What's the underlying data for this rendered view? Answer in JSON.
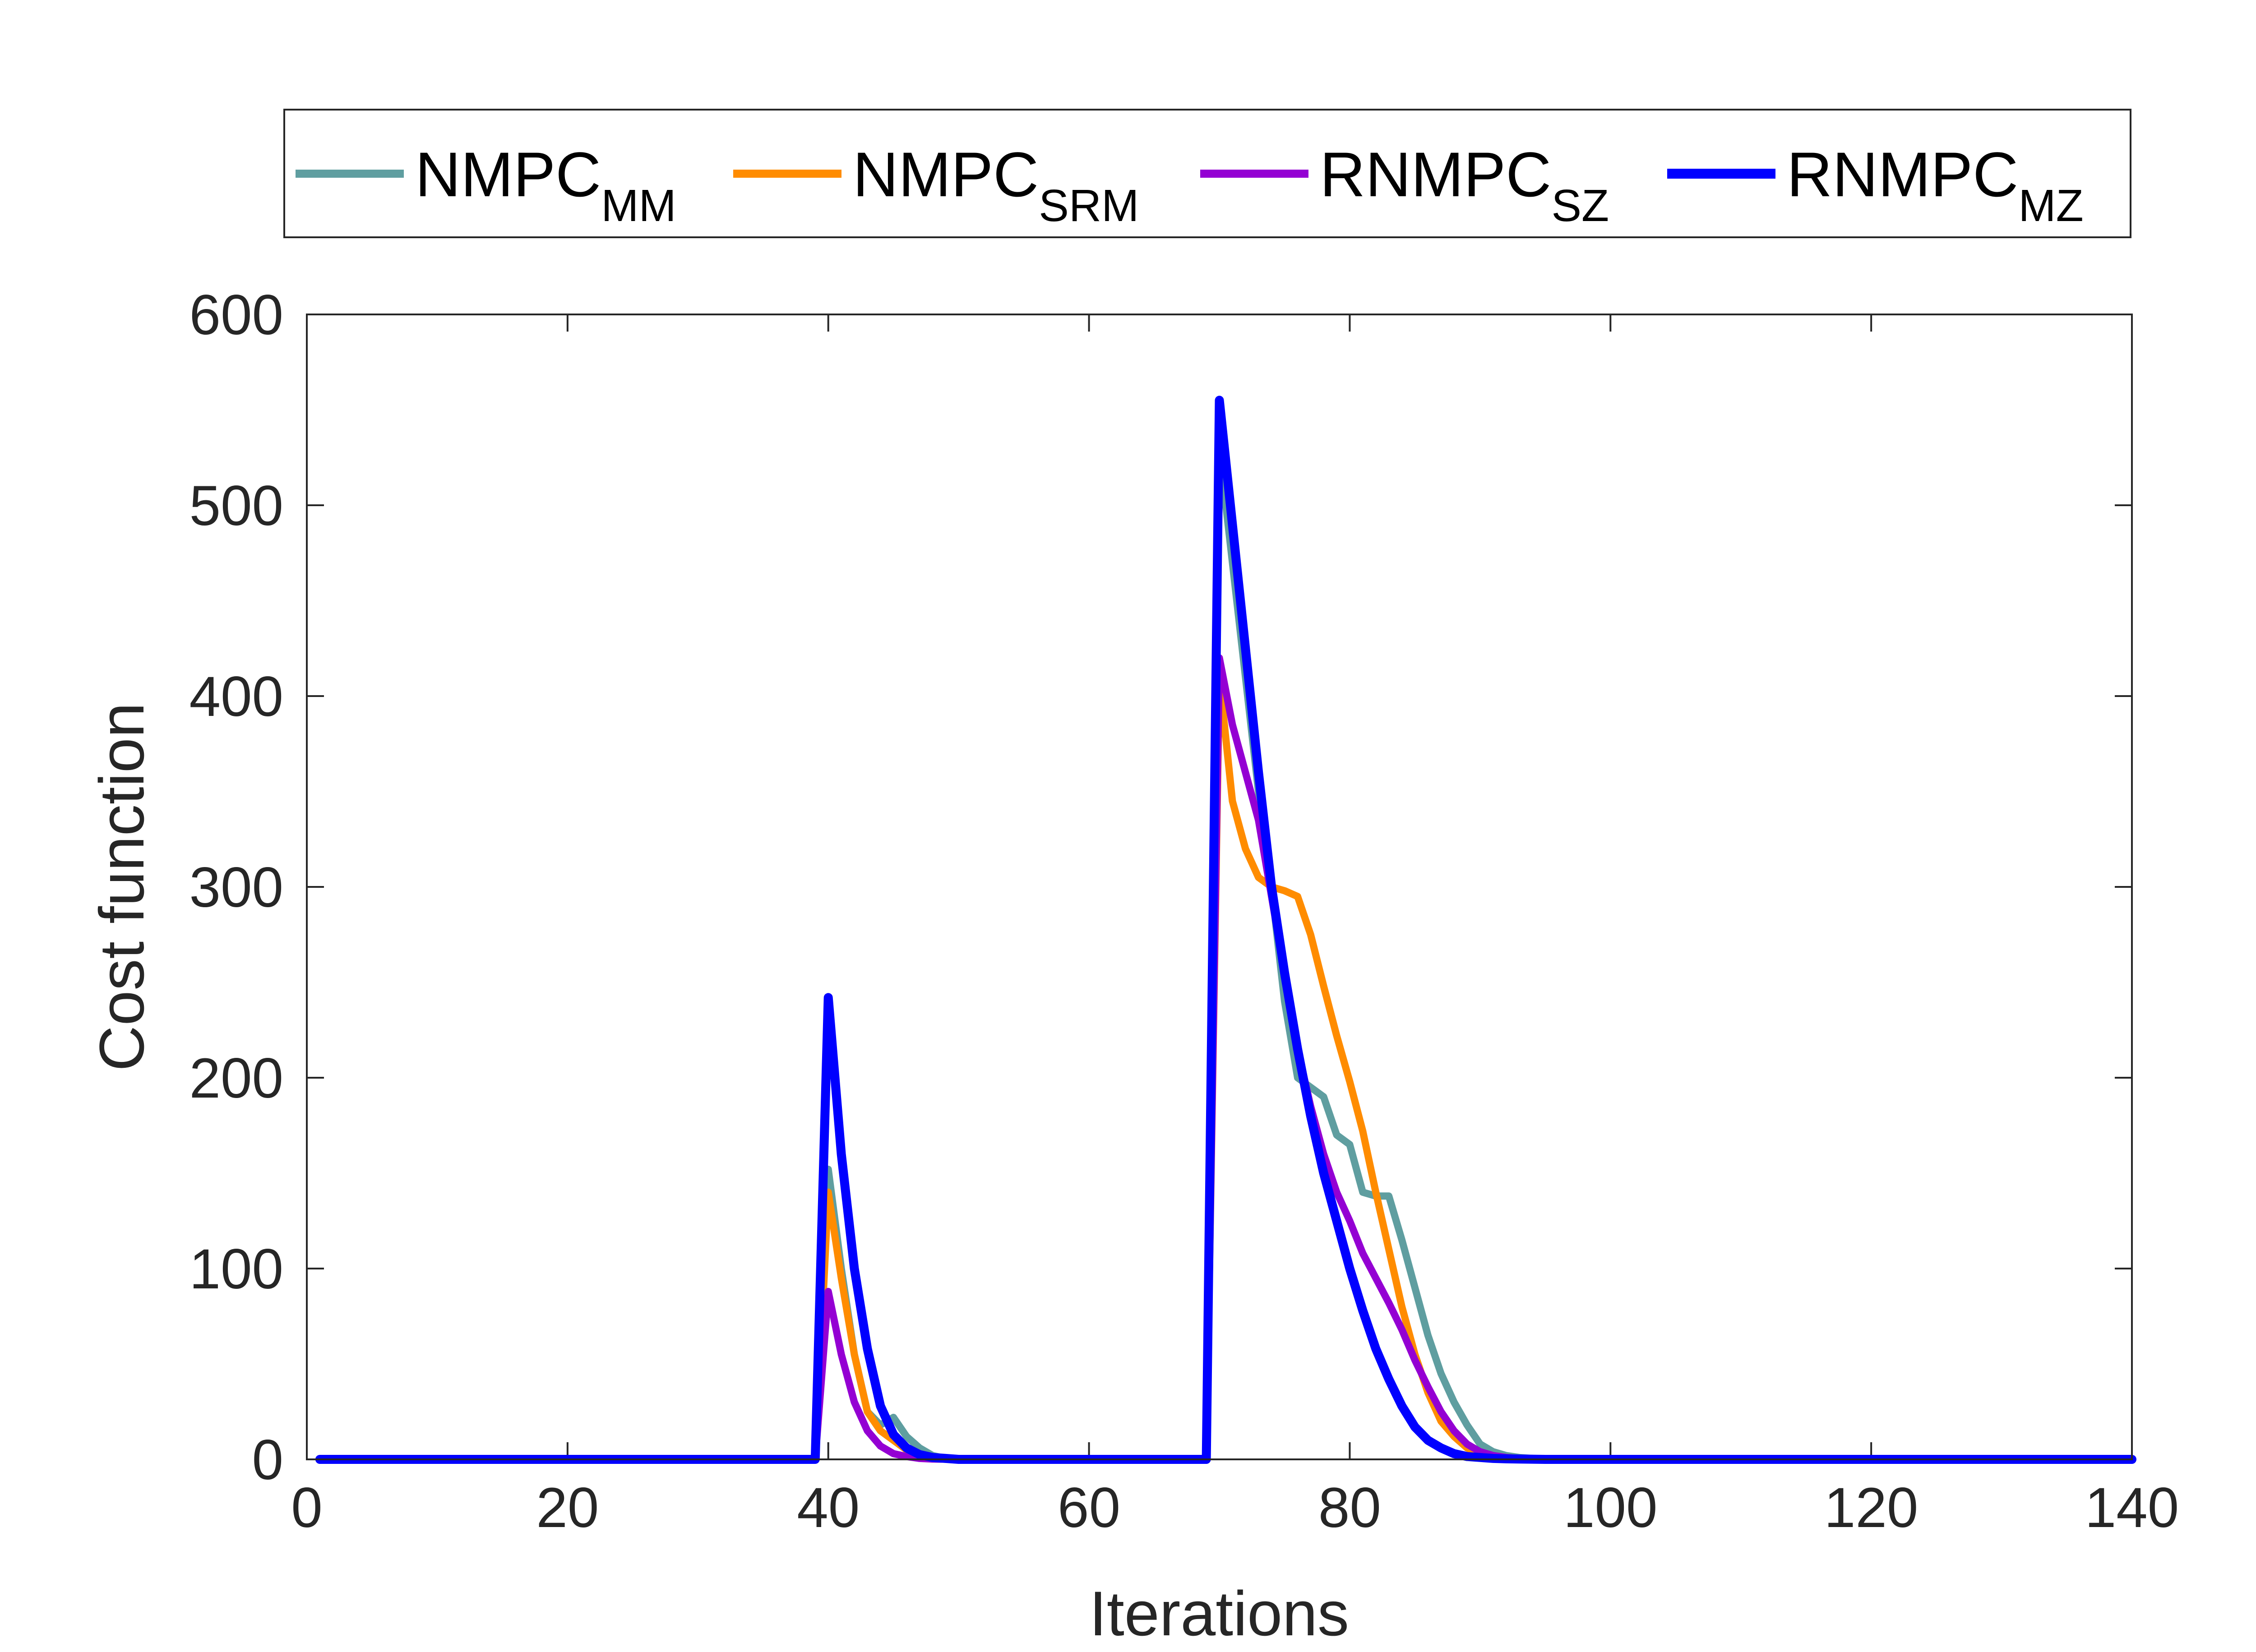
{
  "chart_data": {
    "type": "line",
    "title": "",
    "xlabel": "Iterations",
    "ylabel": "Cost function",
    "xlim": [
      0,
      140
    ],
    "ylim": [
      0,
      600
    ],
    "xticks": [
      0,
      20,
      40,
      60,
      80,
      100,
      120,
      140
    ],
    "yticks": [
      0,
      100,
      200,
      300,
      400,
      500,
      600
    ],
    "legend_position": "top-outside",
    "series": [
      {
        "name": "NMPC",
        "subscript": "MM",
        "color": "#5f9ea0",
        "x": [
          1,
          38,
          39,
          40,
          41,
          42,
          43,
          44,
          45,
          46,
          47,
          48,
          49,
          50,
          69,
          70,
          71,
          72,
          73,
          74,
          75,
          76,
          77,
          78,
          79,
          80,
          81,
          82,
          83,
          84,
          85,
          86,
          87,
          88,
          89,
          90,
          91,
          92,
          93,
          94,
          95,
          140
        ],
        "y": [
          0,
          0,
          0,
          152,
          100,
          55,
          25,
          18,
          22,
          12,
          6,
          2,
          0.5,
          0,
          0,
          530,
          470,
          410,
          350,
          300,
          240,
          200,
          195,
          190,
          170,
          165,
          140,
          138,
          138,
          115,
          90,
          65,
          45,
          30,
          18,
          8,
          4,
          2,
          1,
          0.5,
          0,
          0
        ]
      },
      {
        "name": "NMPC",
        "subscript": "SRM",
        "color": "#ff8c00",
        "x": [
          1,
          38,
          39,
          40,
          41,
          42,
          43,
          44,
          45,
          46,
          47,
          48,
          50,
          69,
          70,
          71,
          72,
          73,
          74,
          75,
          76,
          77,
          78,
          79,
          80,
          81,
          82,
          83,
          84,
          85,
          86,
          87,
          88,
          89,
          90,
          91,
          92,
          93,
          95,
          140
        ],
        "y": [
          0,
          0,
          0,
          140,
          95,
          55,
          25,
          15,
          10,
          5,
          2,
          1,
          0,
          0,
          410,
          345,
          320,
          305,
          300,
          298,
          295,
          275,
          248,
          222,
          198,
          172,
          140,
          110,
          80,
          55,
          35,
          20,
          12,
          6,
          3,
          1.5,
          1,
          0.5,
          0,
          0
        ]
      },
      {
        "name": "RNMPC",
        "subscript": "SZ",
        "color": "#9400d3",
        "x": [
          1,
          38,
          39,
          40,
          41,
          42,
          43,
          44,
          45,
          46,
          47,
          48,
          50,
          69,
          70,
          71,
          72,
          73,
          74,
          75,
          76,
          77,
          78,
          79,
          80,
          81,
          82,
          83,
          84,
          85,
          86,
          87,
          88,
          89,
          90,
          91,
          92,
          93,
          95,
          140
        ],
        "y": [
          0,
          0,
          0,
          88,
          55,
          30,
          15,
          7,
          3,
          1.5,
          0.5,
          0.2,
          0,
          0,
          420,
          385,
          360,
          335,
          295,
          255,
          215,
          185,
          160,
          140,
          125,
          108,
          95,
          82,
          68,
          52,
          38,
          25,
          15,
          8,
          4,
          2,
          1,
          0.5,
          0,
          0
        ]
      },
      {
        "name": "RNMPC",
        "subscript": "MZ",
        "color": "#0000ff",
        "x": [
          1,
          38,
          39,
          40,
          41,
          42,
          43,
          44,
          45,
          46,
          47,
          48,
          49,
          50,
          69,
          70,
          71,
          72,
          73,
          74,
          75,
          76,
          77,
          78,
          79,
          80,
          81,
          82,
          83,
          84,
          85,
          86,
          87,
          88,
          89,
          90,
          91,
          92,
          93,
          94,
          95,
          140
        ],
        "y": [
          0,
          0,
          0,
          242,
          160,
          100,
          58,
          28,
          13,
          6,
          2.5,
          1,
          0.5,
          0,
          0,
          555,
          490,
          425,
          360,
          300,
          255,
          215,
          180,
          150,
          125,
          100,
          78,
          58,
          42,
          28,
          17,
          10,
          6,
          3,
          1.5,
          1,
          0.5,
          0.3,
          0.2,
          0.1,
          0,
          0
        ]
      }
    ]
  }
}
